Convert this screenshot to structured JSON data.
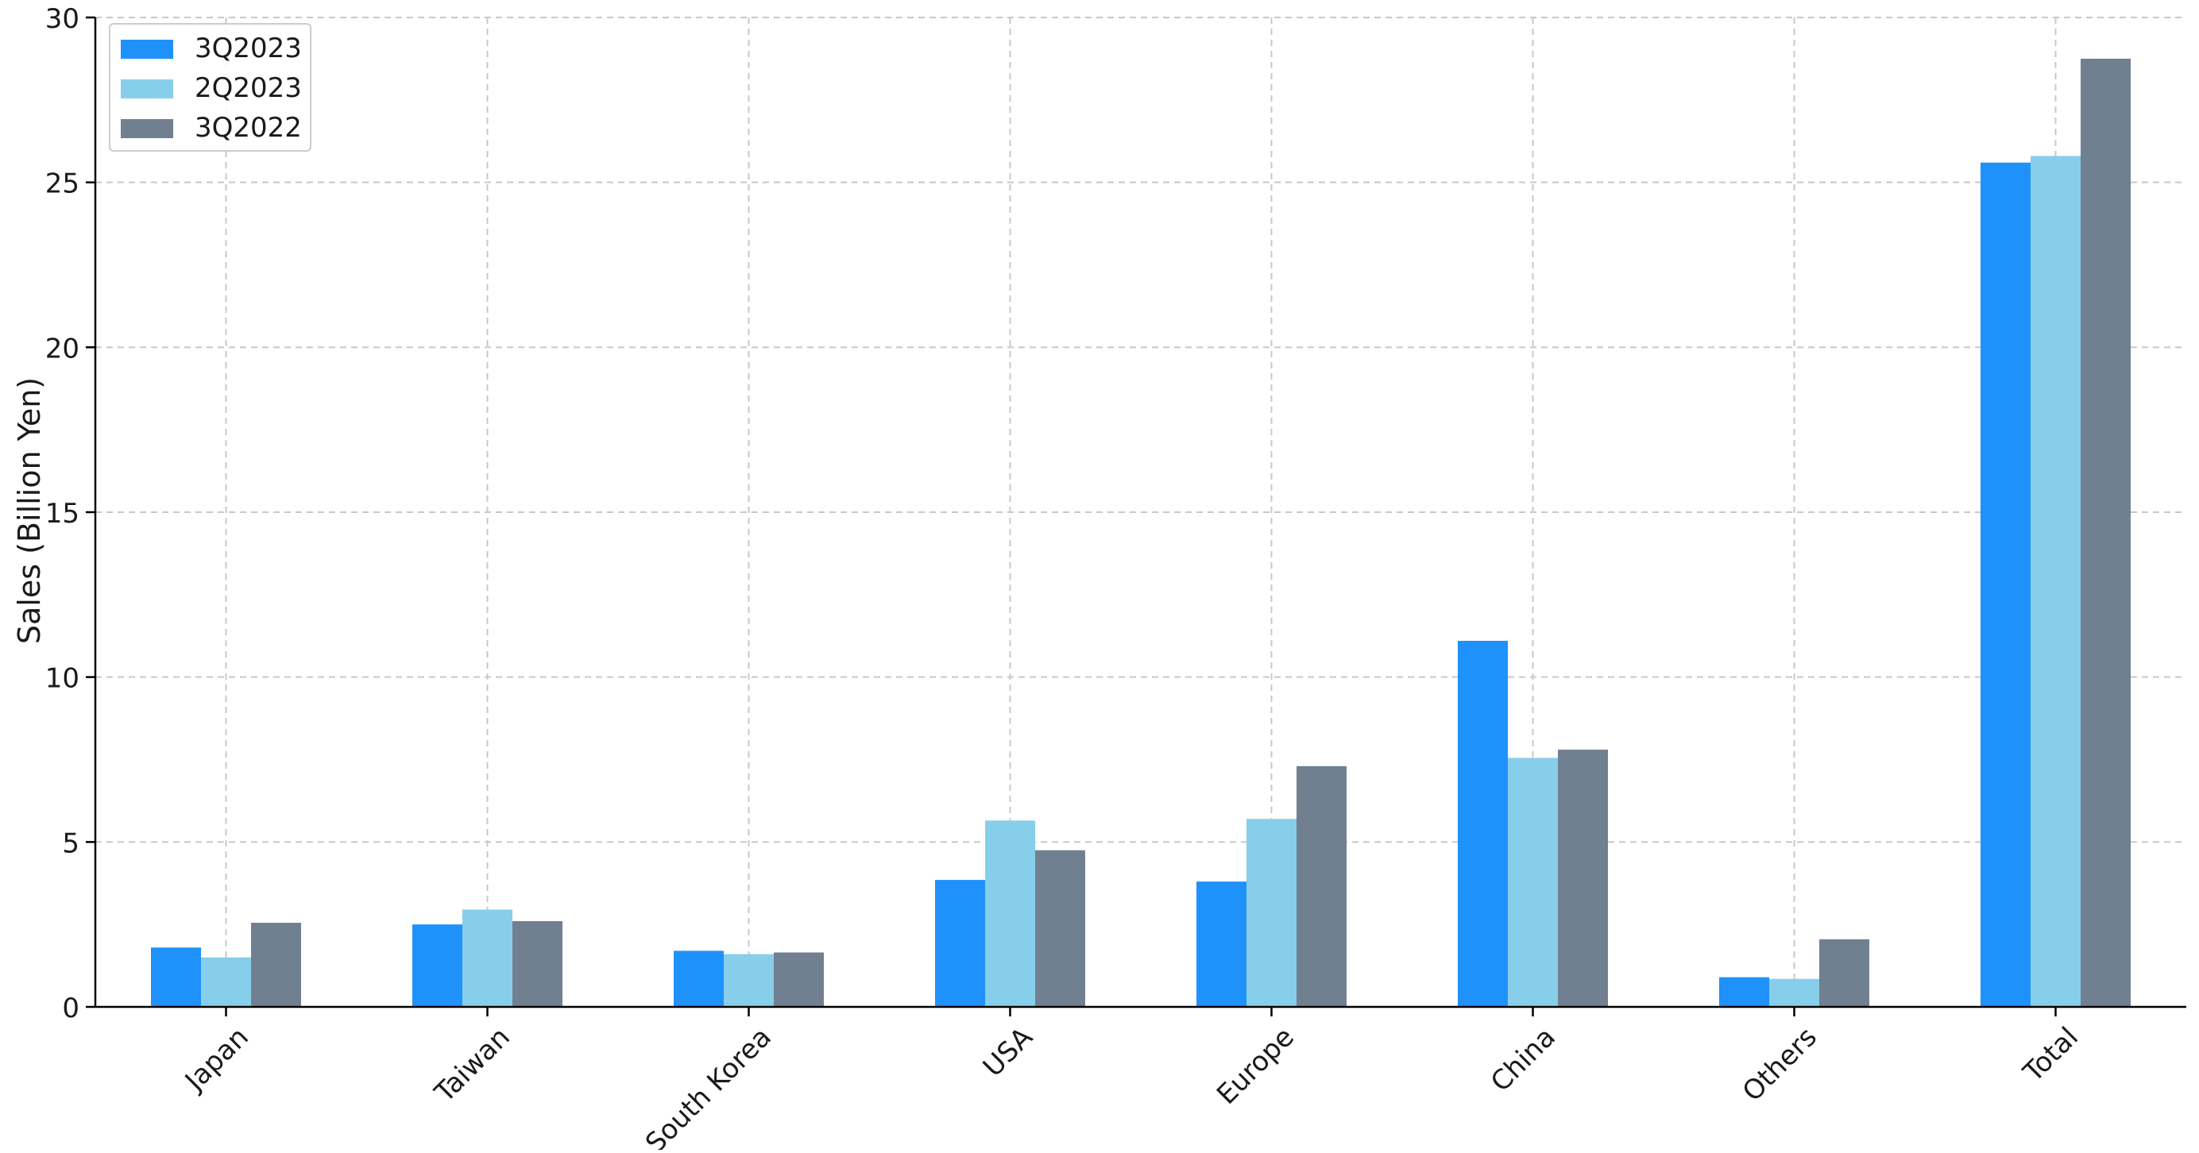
{
  "chart_data": {
    "type": "bar",
    "title": "",
    "xlabel": "",
    "ylabel": "Sales (Billion Yen)",
    "ylim": [
      0,
      30
    ],
    "yticks": [
      0,
      5,
      10,
      15,
      20,
      25,
      30
    ],
    "grid": true,
    "legend_position": "top-left",
    "categories": [
      "Japan",
      "Taiwan",
      "South Korea",
      "USA",
      "Europe",
      "China",
      "Others",
      "Total"
    ],
    "series": [
      {
        "name": "3Q2023",
        "color": "#1f91fb",
        "values": [
          1.8,
          2.5,
          1.7,
          3.85,
          3.8,
          11.1,
          0.9,
          25.6
        ]
      },
      {
        "name": "2Q2023",
        "color": "#87ceeb",
        "values": [
          1.5,
          2.95,
          1.6,
          5.65,
          5.7,
          7.55,
          0.85,
          25.8
        ]
      },
      {
        "name": "3Q2022",
        "color": "#708090",
        "values": [
          2.55,
          2.6,
          1.65,
          4.75,
          7.3,
          7.8,
          2.05,
          28.75
        ]
      }
    ]
  }
}
